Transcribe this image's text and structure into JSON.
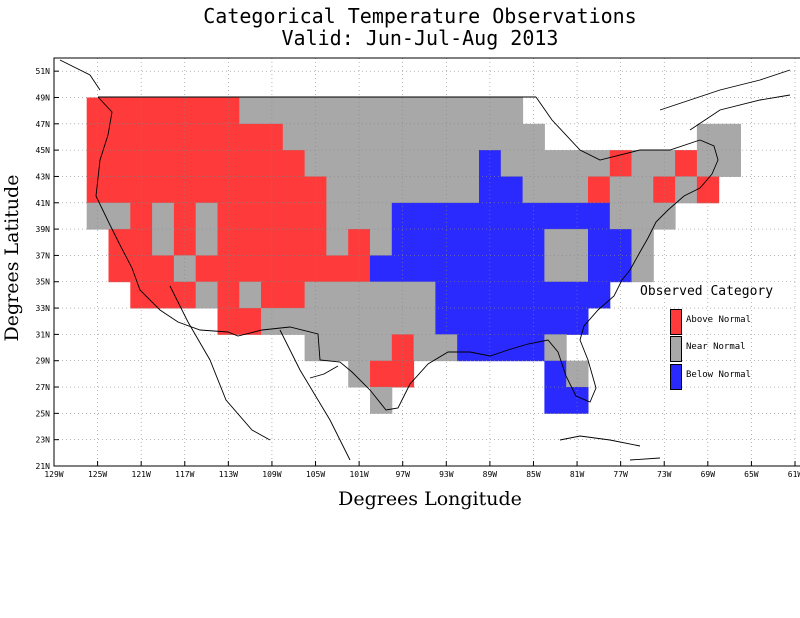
{
  "title_line1": "Categorical Temperature Observations",
  "title_line2": "Valid: Jun-Jul-Aug 2013",
  "colors": {
    "above": "#ff3a3a",
    "near": "#a8a8a8",
    "below": "#2a2aff"
  },
  "chart_data": {
    "type": "heatmap",
    "xlabel": "Degrees Longitude",
    "ylabel": "Degrees Latitude",
    "xlim": [
      -129,
      -61
    ],
    "ylim": [
      21,
      52
    ],
    "x_ticks": [
      "129W",
      "125W",
      "121W",
      "117W",
      "113W",
      "109W",
      "105W",
      "101W",
      "97W",
      "93W",
      "89W",
      "85W",
      "81W",
      "77W",
      "73W",
      "69W",
      "65W",
      "61W"
    ],
    "y_ticks": [
      "51N",
      "49N",
      "47N",
      "45N",
      "43N",
      "41N",
      "39N",
      "37N",
      "35N",
      "33N",
      "31N",
      "29N",
      "27N",
      "25N",
      "23N",
      "21N"
    ],
    "grid": true,
    "legend_position": "right",
    "legend_title": "Observed Category",
    "categories": [
      "Above Normal",
      "Near Normal",
      "Below Normal"
    ],
    "cell_size_degrees": 2,
    "cells_note_codes": "A = Above Normal, N = Near Normal, B = Below Normal",
    "rows": [
      {
        "lat": 48,
        "cells": [
          [
            "-125",
            "A"
          ],
          [
            "-123",
            "A"
          ],
          [
            "-121",
            "A"
          ],
          [
            "-119",
            "A"
          ],
          [
            "-117",
            "A"
          ],
          [
            "-115",
            "A"
          ],
          [
            "-113",
            "A"
          ],
          [
            "-111",
            "N"
          ],
          [
            "-109",
            "N"
          ],
          [
            "-107",
            "N"
          ],
          [
            "-105",
            "N"
          ],
          [
            "-103",
            "N"
          ],
          [
            "-101",
            "N"
          ],
          [
            "-99",
            "N"
          ],
          [
            "-97",
            "N"
          ],
          [
            "-95",
            "N"
          ],
          [
            "-93",
            "N"
          ],
          [
            "-91",
            "N"
          ],
          [
            "-89",
            "N"
          ],
          [
            "-87",
            "N"
          ]
        ]
      },
      {
        "lat": 46,
        "cells": [
          [
            "-125",
            "A"
          ],
          [
            "-123",
            "A"
          ],
          [
            "-121",
            "A"
          ],
          [
            "-119",
            "A"
          ],
          [
            "-117",
            "A"
          ],
          [
            "-115",
            "A"
          ],
          [
            "-113",
            "A"
          ],
          [
            "-111",
            "A"
          ],
          [
            "-109",
            "A"
          ],
          [
            "-107",
            "N"
          ],
          [
            "-105",
            "N"
          ],
          [
            "-103",
            "N"
          ],
          [
            "-101",
            "N"
          ],
          [
            "-99",
            "N"
          ],
          [
            "-97",
            "N"
          ],
          [
            "-95",
            "N"
          ],
          [
            "-93",
            "N"
          ],
          [
            "-91",
            "N"
          ],
          [
            "-89",
            "N"
          ],
          [
            "-87",
            "N"
          ],
          [
            "-85",
            "N"
          ],
          [
            "-69",
            "N"
          ],
          [
            "-67",
            "N"
          ]
        ]
      },
      {
        "lat": 44,
        "cells": [
          [
            "-125",
            "A"
          ],
          [
            "-123",
            "A"
          ],
          [
            "-121",
            "A"
          ],
          [
            "-119",
            "A"
          ],
          [
            "-117",
            "A"
          ],
          [
            "-115",
            "A"
          ],
          [
            "-113",
            "A"
          ],
          [
            "-111",
            "A"
          ],
          [
            "-109",
            "A"
          ],
          [
            "-107",
            "A"
          ],
          [
            "-105",
            "N"
          ],
          [
            "-103",
            "N"
          ],
          [
            "-101",
            "N"
          ],
          [
            "-99",
            "N"
          ],
          [
            "-97",
            "N"
          ],
          [
            "-95",
            "N"
          ],
          [
            "-93",
            "N"
          ],
          [
            "-91",
            "N"
          ],
          [
            "-89",
            "B"
          ],
          [
            "-87",
            "N"
          ],
          [
            "-85",
            "N"
          ],
          [
            "-83",
            "N"
          ],
          [
            "-81",
            "N"
          ],
          [
            "-79",
            "N"
          ],
          [
            "-77",
            "A"
          ],
          [
            "-75",
            "N"
          ],
          [
            "-73",
            "N"
          ],
          [
            "-71",
            "A"
          ],
          [
            "-69",
            "N"
          ],
          [
            "-67",
            "N"
          ]
        ]
      },
      {
        "lat": 42,
        "cells": [
          [
            "-125",
            "A"
          ],
          [
            "-123",
            "A"
          ],
          [
            "-121",
            "A"
          ],
          [
            "-119",
            "A"
          ],
          [
            "-117",
            "A"
          ],
          [
            "-115",
            "A"
          ],
          [
            "-113",
            "A"
          ],
          [
            "-111",
            "A"
          ],
          [
            "-109",
            "A"
          ],
          [
            "-107",
            "A"
          ],
          [
            "-105",
            "A"
          ],
          [
            "-103",
            "N"
          ],
          [
            "-101",
            "N"
          ],
          [
            "-99",
            "N"
          ],
          [
            "-97",
            "N"
          ],
          [
            "-95",
            "N"
          ],
          [
            "-93",
            "N"
          ],
          [
            "-91",
            "N"
          ],
          [
            "-89",
            "B"
          ],
          [
            "-87",
            "B"
          ],
          [
            "-85",
            "N"
          ],
          [
            "-83",
            "N"
          ],
          [
            "-81",
            "N"
          ],
          [
            "-79",
            "A"
          ],
          [
            "-77",
            "N"
          ],
          [
            "-75",
            "N"
          ],
          [
            "-73",
            "A"
          ],
          [
            "-71",
            "N"
          ],
          [
            "-69",
            "A"
          ]
        ]
      },
      {
        "lat": 40,
        "cells": [
          [
            "-125",
            "N"
          ],
          [
            "-123",
            "N"
          ],
          [
            "-121",
            "A"
          ],
          [
            "-119",
            "N"
          ],
          [
            "-117",
            "A"
          ],
          [
            "-115",
            "N"
          ],
          [
            "-113",
            "A"
          ],
          [
            "-111",
            "A"
          ],
          [
            "-109",
            "A"
          ],
          [
            "-107",
            "A"
          ],
          [
            "-105",
            "A"
          ],
          [
            "-103",
            "N"
          ],
          [
            "-101",
            "N"
          ],
          [
            "-99",
            "N"
          ],
          [
            "-97",
            "B"
          ],
          [
            "-95",
            "B"
          ],
          [
            "-93",
            "B"
          ],
          [
            "-91",
            "B"
          ],
          [
            "-89",
            "B"
          ],
          [
            "-87",
            "B"
          ],
          [
            "-85",
            "B"
          ],
          [
            "-83",
            "B"
          ],
          [
            "-81",
            "B"
          ],
          [
            "-79",
            "B"
          ],
          [
            "-77",
            "N"
          ],
          [
            "-75",
            "N"
          ],
          [
            "-73",
            "N"
          ]
        ]
      },
      {
        "lat": 38,
        "cells": [
          [
            "-123",
            "A"
          ],
          [
            "-121",
            "A"
          ],
          [
            "-119",
            "N"
          ],
          [
            "-117",
            "A"
          ],
          [
            "-115",
            "N"
          ],
          [
            "-113",
            "A"
          ],
          [
            "-111",
            "A"
          ],
          [
            "-109",
            "A"
          ],
          [
            "-107",
            "A"
          ],
          [
            "-105",
            "A"
          ],
          [
            "-103",
            "N"
          ],
          [
            "-101",
            "A"
          ],
          [
            "-99",
            "N"
          ],
          [
            "-97",
            "B"
          ],
          [
            "-95",
            "B"
          ],
          [
            "-93",
            "B"
          ],
          [
            "-91",
            "B"
          ],
          [
            "-89",
            "B"
          ],
          [
            "-87",
            "B"
          ],
          [
            "-85",
            "B"
          ],
          [
            "-83",
            "N"
          ],
          [
            "-81",
            "N"
          ],
          [
            "-79",
            "B"
          ],
          [
            "-77",
            "B"
          ],
          [
            "-75",
            "N"
          ]
        ]
      },
      {
        "lat": 36,
        "cells": [
          [
            "-123",
            "A"
          ],
          [
            "-121",
            "A"
          ],
          [
            "-119",
            "A"
          ],
          [
            "-117",
            "N"
          ],
          [
            "-115",
            "A"
          ],
          [
            "-113",
            "A"
          ],
          [
            "-111",
            "A"
          ],
          [
            "-109",
            "A"
          ],
          [
            "-107",
            "A"
          ],
          [
            "-105",
            "A"
          ],
          [
            "-103",
            "A"
          ],
          [
            "-101",
            "A"
          ],
          [
            "-99",
            "B"
          ],
          [
            "-97",
            "B"
          ],
          [
            "-95",
            "B"
          ],
          [
            "-93",
            "B"
          ],
          [
            "-91",
            "B"
          ],
          [
            "-89",
            "B"
          ],
          [
            "-87",
            "B"
          ],
          [
            "-85",
            "B"
          ],
          [
            "-83",
            "N"
          ],
          [
            "-81",
            "N"
          ],
          [
            "-79",
            "B"
          ],
          [
            "-77",
            "B"
          ],
          [
            "-75",
            "N"
          ]
        ]
      },
      {
        "lat": 34,
        "cells": [
          [
            "-121",
            "A"
          ],
          [
            "-119",
            "A"
          ],
          [
            "-117",
            "A"
          ],
          [
            "-115",
            "N"
          ],
          [
            "-113",
            "A"
          ],
          [
            "-111",
            "N"
          ],
          [
            "-109",
            "A"
          ],
          [
            "-107",
            "A"
          ],
          [
            "-105",
            "N"
          ],
          [
            "-103",
            "N"
          ],
          [
            "-101",
            "N"
          ],
          [
            "-99",
            "N"
          ],
          [
            "-97",
            "N"
          ],
          [
            "-95",
            "N"
          ],
          [
            "-93",
            "B"
          ],
          [
            "-91",
            "B"
          ],
          [
            "-89",
            "B"
          ],
          [
            "-87",
            "B"
          ],
          [
            "-85",
            "B"
          ],
          [
            "-83",
            "B"
          ],
          [
            "-81",
            "B"
          ],
          [
            "-79",
            "B"
          ]
        ]
      },
      {
        "lat": 32,
        "cells": [
          [
            "-113",
            "A"
          ],
          [
            "-111",
            "A"
          ],
          [
            "-109",
            "N"
          ],
          [
            "-107",
            "N"
          ],
          [
            "-105",
            "N"
          ],
          [
            "-103",
            "N"
          ],
          [
            "-101",
            "N"
          ],
          [
            "-99",
            "N"
          ],
          [
            "-97",
            "N"
          ],
          [
            "-95",
            "N"
          ],
          [
            "-93",
            "B"
          ],
          [
            "-91",
            "B"
          ],
          [
            "-89",
            "B"
          ],
          [
            "-87",
            "B"
          ],
          [
            "-85",
            "B"
          ],
          [
            "-83",
            "B"
          ],
          [
            "-81",
            "B"
          ]
        ]
      },
      {
        "lat": 30,
        "cells": [
          [
            "-105",
            "N"
          ],
          [
            "-103",
            "N"
          ],
          [
            "-101",
            "N"
          ],
          [
            "-99",
            "N"
          ],
          [
            "-97",
            "A"
          ],
          [
            "-95",
            "N"
          ],
          [
            "-93",
            "N"
          ],
          [
            "-91",
            "B"
          ],
          [
            "-89",
            "B"
          ],
          [
            "-87",
            "B"
          ],
          [
            "-85",
            "B"
          ],
          [
            "-83",
            "N"
          ]
        ]
      },
      {
        "lat": 28,
        "cells": [
          [
            "-101",
            "N"
          ],
          [
            "-99",
            "A"
          ],
          [
            "-97",
            "A"
          ],
          [
            "-83",
            "B"
          ],
          [
            "-81",
            "N"
          ]
        ]
      },
      {
        "lat": 26,
        "cells": [
          [
            "-99",
            "N"
          ],
          [
            "-83",
            "B"
          ],
          [
            "-81",
            "B"
          ]
        ]
      }
    ]
  },
  "legend": {
    "title": "Observed Category",
    "items": [
      {
        "label": "Above Normal",
        "color": "#ff3a3a"
      },
      {
        "label": "Near Normal",
        "color": "#a8a8a8"
      },
      {
        "label": "Below Normal",
        "color": "#2a2aff"
      }
    ]
  }
}
